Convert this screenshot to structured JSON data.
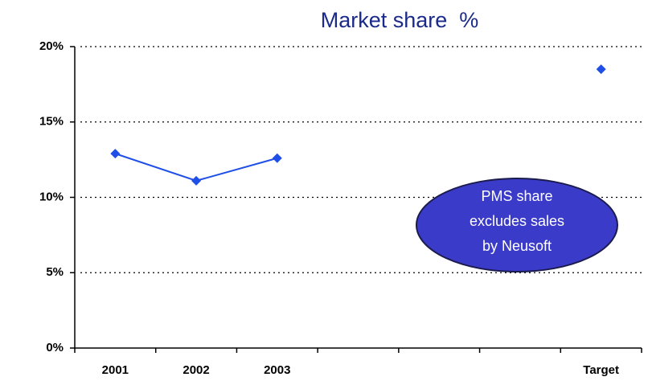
{
  "chart_data": {
    "type": "line",
    "title": "Market share  %",
    "categories": [
      "2001",
      "2002",
      "2003",
      null,
      null,
      null,
      "Target"
    ],
    "series": [
      {
        "name": "Market share",
        "color": "#1f4fe6",
        "values": [
          12.9,
          11.1,
          12.6,
          null,
          null,
          null,
          18.5
        ]
      }
    ],
    "ylim": [
      0,
      20
    ],
    "yticks": [
      {
        "value": 0,
        "label": "0%"
      },
      {
        "value": 5,
        "label": "5%"
      },
      {
        "value": 10,
        "label": "10%"
      },
      {
        "value": 15,
        "label": "15%"
      },
      {
        "value": 20,
        "label": "20%"
      }
    ],
    "grid": true,
    "annotation": [
      "PMS share",
      "excludes sales",
      "by Neusoft"
    ]
  }
}
